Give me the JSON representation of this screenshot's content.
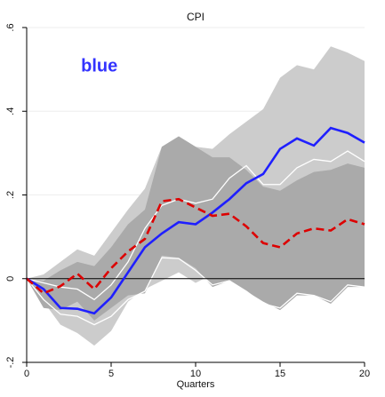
{
  "chart_data": {
    "type": "line",
    "title": "CPI",
    "xlabel": "Quarters",
    "ylabel": "",
    "xlim": [
      0,
      20
    ],
    "ylim": [
      -0.2,
      0.6
    ],
    "x_ticks": [
      0,
      5,
      10,
      15,
      20
    ],
    "x_tick_labels": [
      "0",
      "5",
      "10",
      "15",
      "20"
    ],
    "y_ticks": [
      -0.2,
      0,
      0.2,
      0.4,
      0.6
    ],
    "y_tick_labels": [
      "-.2",
      "0",
      ".2",
      ".4",
      ".6"
    ],
    "grid": "horizontal",
    "annotation": {
      "text": "blue",
      "x": 4.3,
      "y": 0.51,
      "color": "#3333ff"
    },
    "colors": {
      "outer_band": "#cccccc",
      "inner_band": "#aaaaaa",
      "white_band_edges": "#ffffff",
      "blue_line": "#1f1fff",
      "red_line": "#dd0000",
      "zero_line": "#000000"
    },
    "x": [
      0,
      1,
      2,
      3,
      4,
      5,
      6,
      7,
      8,
      9,
      10,
      11,
      12,
      13,
      14,
      15,
      16,
      17,
      18,
      19,
      20
    ],
    "series": [
      {
        "kind": "line",
        "style": "solid",
        "values": [
          0,
          -0.025,
          -0.07,
          -0.072,
          -0.083,
          -0.045,
          0.015,
          0.075,
          0.108,
          0.135,
          0.13,
          0.158,
          0.19,
          0.228,
          0.25,
          0.31,
          0.335,
          0.318,
          0.36,
          0.348,
          0.325
        ]
      },
      {
        "kind": "line",
        "style": "dashed",
        "values": [
          0,
          -0.035,
          -0.018,
          0.012,
          -0.025,
          0.025,
          0.065,
          0.095,
          0.185,
          0.19,
          0.17,
          0.15,
          0.155,
          0.125,
          0.085,
          0.075,
          0.108,
          0.12,
          0.115,
          0.142,
          0.13
        ]
      },
      {
        "kind": "band",
        "band": "outer",
        "upper": [
          0,
          0.01,
          0.04,
          0.07,
          0.055,
          0.11,
          0.165,
          0.215,
          0.315,
          0.34,
          0.315,
          0.31,
          0.345,
          0.375,
          0.405,
          0.48,
          0.51,
          0.5,
          0.555,
          0.54,
          0.52
        ],
        "lower": [
          0,
          -0.055,
          -0.11,
          -0.13,
          -0.16,
          -0.125,
          -0.055,
          -0.025,
          -0.005,
          0.015,
          -0.01,
          0.01,
          0.035,
          0.03,
          0.05,
          0.065,
          0.09,
          0.085,
          0.095,
          0.105,
          0.09
        ]
      },
      {
        "kind": "band",
        "band": "inner",
        "upper": [
          0,
          -0.005,
          0.02,
          0.04,
          0.03,
          0.075,
          0.13,
          0.165,
          0.315,
          0.34,
          0.315,
          0.29,
          0.29,
          0.26,
          0.22,
          0.21,
          0.235,
          0.255,
          0.26,
          0.275,
          0.265
        ],
        "lower": [
          0,
          -0.07,
          -0.075,
          -0.055,
          -0.1,
          -0.07,
          -0.04,
          -0.035,
          0.055,
          0.05,
          0.025,
          -0.02,
          -0.005,
          -0.03,
          -0.055,
          -0.075,
          -0.04,
          -0.04,
          -0.06,
          -0.02,
          -0.02
        ]
      },
      {
        "kind": "band_edges",
        "band": "white",
        "upper": [
          0,
          -0.01,
          -0.02,
          -0.025,
          -0.05,
          -0.015,
          0.04,
          0.12,
          0.175,
          0.19,
          0.18,
          0.19,
          0.24,
          0.27,
          0.225,
          0.225,
          0.265,
          0.285,
          0.28,
          0.305,
          0.28
        ],
        "lower": [
          0,
          -0.05,
          -0.085,
          -0.09,
          -0.11,
          -0.09,
          -0.05,
          -0.03,
          0.05,
          0.048,
          0.02,
          -0.015,
          -0.005,
          -0.03,
          -0.06,
          -0.07,
          -0.035,
          -0.04,
          -0.055,
          -0.015,
          -0.02
        ]
      }
    ]
  }
}
